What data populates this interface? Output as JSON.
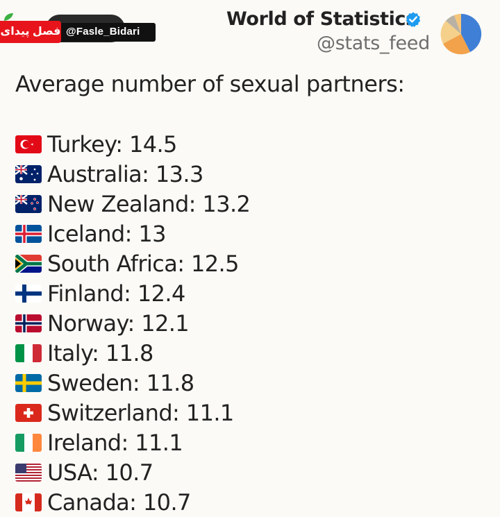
{
  "watermark": {
    "logo_text": "فصل پیدای",
    "handle": "@Fasle_Bidari"
  },
  "header": {
    "display_name": "World of Statistics",
    "handle": "@stats_feed",
    "verified": true,
    "verified_color": "#1d9bf0"
  },
  "post": {
    "heading": "Average number of sexual partners:",
    "items": [
      {
        "flag_icon": "turkey-flag-icon",
        "text": "Turkey: 14.5"
      },
      {
        "flag_icon": "australia-flag-icon",
        "text": "Australia: 13.3"
      },
      {
        "flag_icon": "new-zealand-flag-icon",
        "text": "New Zealand: 13.2"
      },
      {
        "flag_icon": "iceland-flag-icon",
        "text": "Iceland: 13"
      },
      {
        "flag_icon": "south-africa-flag-icon",
        "text": "South Africa: 12.5"
      },
      {
        "flag_icon": "finland-flag-icon",
        "text": "Finland: 12.4"
      },
      {
        "flag_icon": "norway-flag-icon",
        "text": "Norway: 12.1"
      },
      {
        "flag_icon": "italy-flag-icon",
        "text": "Italy: 11.8"
      },
      {
        "flag_icon": "sweden-flag-icon",
        "text": "Sweden: 11.8"
      },
      {
        "flag_icon": "switzerland-flag-icon",
        "text": "Switzerland: 11.1"
      },
      {
        "flag_icon": "ireland-flag-icon",
        "text": "Ireland: 11.1"
      },
      {
        "flag_icon": "usa-flag-icon",
        "text": "USA: 10.7"
      },
      {
        "flag_icon": "canada-flag-icon",
        "text": "Canada: 10.7"
      }
    ]
  }
}
